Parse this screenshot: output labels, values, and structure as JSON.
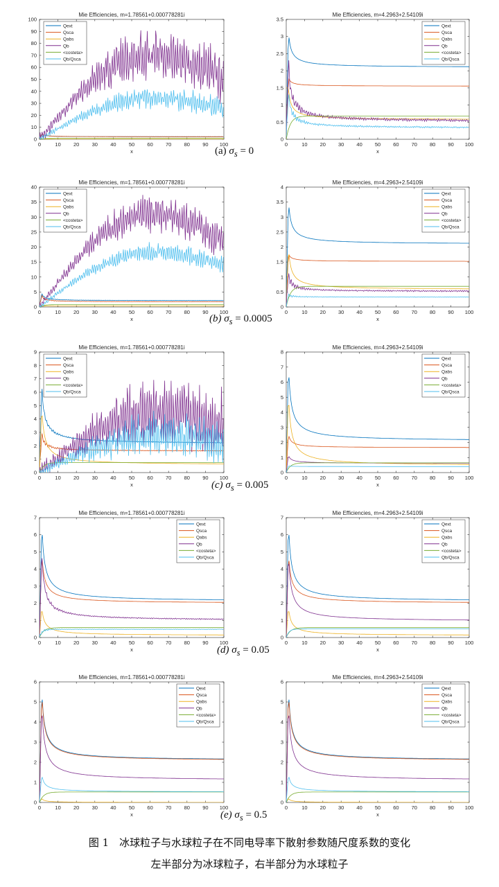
{
  "figure": {
    "caption_line1": "图 1　冰球粒子与水球粒子在不同电导率下散射参数随尺度系数的变化",
    "caption_line2": "左半部分为冰球粒子，右半部分为水球粒子",
    "legend_labels": [
      "Qext",
      "Qsca",
      "Qabs",
      "Qb",
      "<costeta>",
      "Qb/Qsca"
    ],
    "series_colors": {
      "Qext": "#0072BD",
      "Qsca": "#D95319",
      "Qabs": "#EDB120",
      "Qb": "#7E2F8E",
      "costeta": "#77AC30",
      "QbQsca": "#4DBEEE"
    },
    "rows": [
      {
        "label_prefix": "(a)",
        "sigma_symbol": "σ",
        "sigma_sub": "s",
        "sigma_value": "= 0"
      },
      {
        "label_prefix": "(b)",
        "sigma_symbol": "σ",
        "sigma_sub": "s",
        "sigma_value": "= 0.0005"
      },
      {
        "label_prefix": "(c)",
        "sigma_symbol": "σ",
        "sigma_sub": "s",
        "sigma_value": "= 0.005"
      },
      {
        "label_prefix": "(d)",
        "sigma_symbol": "σ",
        "sigma_sub": "s",
        "sigma_value": "= 0.05"
      },
      {
        "label_prefix": "(e)",
        "sigma_symbol": "σ",
        "sigma_sub": "s",
        "sigma_value": "= 0.5"
      }
    ]
  },
  "chart_data": [
    {
      "id": "a-ice",
      "type": "line",
      "title": "Mie Efficiencies, m=1.78561+0.000778281i",
      "xlabel": "x",
      "ylabel": "",
      "xlim": [
        0,
        100
      ],
      "ylim": [
        0,
        100
      ],
      "xticks": [
        0,
        10,
        20,
        30,
        40,
        50,
        60,
        70,
        80,
        90,
        100
      ],
      "yticks": [
        0,
        10,
        20,
        30,
        40,
        50,
        60,
        70,
        80,
        90,
        100
      ],
      "legend": "top-left",
      "series": [
        {
          "name": "Qext",
          "start": 0,
          "peak": 4.5,
          "final": 2.1,
          "osc": 0.3,
          "envelope": "decay"
        },
        {
          "name": "Qsca",
          "start": 0,
          "peak": 4.5,
          "final": 2.1,
          "osc": 0.3,
          "envelope": "decay"
        },
        {
          "name": "Qabs",
          "start": 0,
          "peak": 0.3,
          "final": 0.1,
          "osc": 0,
          "envelope": "decay"
        },
        {
          "name": "Qb",
          "start": 0,
          "peak": 93,
          "final": 50,
          "mid_peak_x": 60,
          "mid_peak": 70,
          "osc": 22,
          "envelope": "hump"
        },
        {
          "name": "<costeta>",
          "start": 0,
          "peak": 0.8,
          "final": 0.8,
          "osc": 0,
          "envelope": "rise"
        },
        {
          "name": "Qb/Qsca",
          "start": 0,
          "peak": 46,
          "final": 25,
          "mid_peak_x": 62,
          "mid_peak": 35,
          "osc": 9,
          "envelope": "hump"
        }
      ]
    },
    {
      "id": "a-water",
      "type": "line",
      "title": "Mie Efficiencies, m=4.2963+2.54109i",
      "xlabel": "x",
      "ylabel": "",
      "xlim": [
        0,
        100
      ],
      "ylim": [
        0,
        3.5
      ],
      "xticks": [
        0,
        10,
        20,
        30,
        40,
        50,
        60,
        70,
        80,
        90,
        100
      ],
      "yticks": [
        0,
        0.5,
        1,
        1.5,
        2,
        2.5,
        3,
        3.5
      ],
      "legend": "top-right",
      "series": [
        {
          "name": "Qext",
          "start": 0,
          "peak": 3.15,
          "final": 2.1,
          "osc": 0,
          "envelope": "decay"
        },
        {
          "name": "Qsca",
          "start": 0,
          "peak": 1.8,
          "final": 1.55,
          "osc": 0,
          "envelope": "decay"
        },
        {
          "name": "Qabs",
          "start": 1.5,
          "peak": 1.5,
          "final": 0.57,
          "osc": 0,
          "envelope": "decay"
        },
        {
          "name": "Qb",
          "start": 0,
          "peak": 2.3,
          "final": 0.52,
          "osc": 0.25,
          "envelope": "decay"
        },
        {
          "name": "<costeta>",
          "start": 0,
          "peak": 0.68,
          "final": 0.68,
          "osc": 0,
          "envelope": "rise"
        },
        {
          "name": "Qb/Qsca",
          "start": 0,
          "peak": 1.4,
          "final": 0.33,
          "osc": 0.15,
          "envelope": "decay"
        }
      ]
    },
    {
      "id": "b-ice",
      "type": "line",
      "title": "Mie Efficiencies, m=1.78561+0.000778281i",
      "xlabel": "x",
      "ylabel": "",
      "xlim": [
        0,
        100
      ],
      "ylim": [
        0,
        40
      ],
      "xticks": [
        0,
        10,
        20,
        30,
        40,
        50,
        60,
        70,
        80,
        90,
        100
      ],
      "yticks": [
        0,
        5,
        10,
        15,
        20,
        25,
        30,
        35,
        40
      ],
      "legend": "top-left",
      "series": [
        {
          "name": "Qext",
          "start": 0,
          "peak": 4.5,
          "final": 2.1,
          "osc": 0.3,
          "envelope": "decay"
        },
        {
          "name": "Qsca",
          "start": 0,
          "peak": 3.8,
          "final": 1.7,
          "osc": 0.3,
          "envelope": "decay"
        },
        {
          "name": "Qabs",
          "start": 0,
          "peak": 0.5,
          "final": 0.35,
          "osc": 0,
          "envelope": "flat"
        },
        {
          "name": "Qb",
          "start": 0,
          "peak": 38.5,
          "final": 22,
          "mid_peak_x": 60,
          "mid_peak": 31,
          "osc": 6,
          "envelope": "hump"
        },
        {
          "name": "<costeta>",
          "start": 0,
          "peak": 0.8,
          "final": 0.8,
          "osc": 0,
          "envelope": "rise"
        },
        {
          "name": "Qb/Qsca",
          "start": 0,
          "peak": 23,
          "final": 14,
          "mid_peak_x": 62,
          "mid_peak": 18.5,
          "osc": 3,
          "envelope": "hump"
        }
      ]
    },
    {
      "id": "b-water",
      "type": "line",
      "title": "Mie Efficiencies, m=4.2963+2.54109i",
      "xlabel": "x",
      "ylabel": "",
      "xlim": [
        0,
        100
      ],
      "ylim": [
        0,
        4
      ],
      "xticks": [
        0,
        10,
        20,
        30,
        40,
        50,
        60,
        70,
        80,
        90,
        100
      ],
      "yticks": [
        0,
        0.5,
        1,
        1.5,
        2,
        2.5,
        3,
        3.5,
        4
      ],
      "legend": "top-right",
      "series": [
        {
          "name": "Qext",
          "start": 0,
          "peak": 3.57,
          "final": 2.1,
          "osc": 0,
          "envelope": "decay"
        },
        {
          "name": "Qsca",
          "start": 0,
          "peak": 1.78,
          "final": 1.52,
          "osc": 0,
          "envelope": "decay"
        },
        {
          "name": "Qabs",
          "start": 0,
          "peak": 2.0,
          "final": 0.58,
          "osc": 0,
          "envelope": "decay"
        },
        {
          "name": "Qb",
          "start": 0,
          "peak": 1.1,
          "final": 0.52,
          "osc": 0.15,
          "envelope": "decay"
        },
        {
          "name": "<costeta>",
          "start": 0,
          "peak": 0.69,
          "final": 0.69,
          "osc": 0,
          "envelope": "rise"
        },
        {
          "name": "Qb/Qsca",
          "start": 0,
          "peak": 0.4,
          "final": 0.33,
          "osc": 0.05,
          "envelope": "decay"
        }
      ]
    },
    {
      "id": "c-ice",
      "type": "line",
      "title": "Mie Efficiencies, m=1.78561+0.000778281i",
      "xlabel": "x",
      "ylabel": "",
      "xlim": [
        0,
        100
      ],
      "ylim": [
        0,
        9
      ],
      "xticks": [
        0,
        10,
        20,
        30,
        40,
        50,
        60,
        70,
        80,
        90,
        100
      ],
      "yticks": [
        0,
        1,
        2,
        3,
        4,
        5,
        6,
        7,
        8,
        9
      ],
      "legend": "top-left",
      "series": [
        {
          "name": "Qext",
          "start": 0,
          "peak": 6.6,
          "final": 2.15,
          "osc": 0.2,
          "envelope": "decay"
        },
        {
          "name": "Qsca",
          "start": 0,
          "peak": 2.95,
          "final": 1.6,
          "osc": 0.2,
          "envelope": "decay"
        },
        {
          "name": "Qabs",
          "start": 0,
          "peak": 5.0,
          "final": 0.57,
          "osc": 0,
          "envelope": "decay"
        },
        {
          "name": "Qb",
          "start": 0,
          "peak": 8.1,
          "final": 3.5,
          "mid_peak_x": 65,
          "mid_peak": 4.5,
          "osc": 2.5,
          "envelope": "hump"
        },
        {
          "name": "<costeta>",
          "start": 0,
          "peak": 0.75,
          "final": 0.75,
          "osc": 0,
          "envelope": "rise"
        },
        {
          "name": "Qb/Qsca",
          "start": 0,
          "peak": 5.0,
          "final": 2.2,
          "mid_peak_x": 65,
          "mid_peak": 2.8,
          "osc": 1.6,
          "envelope": "hump"
        }
      ]
    },
    {
      "id": "c-water",
      "type": "line",
      "title": "Mie Efficiencies, m=4.2963+2.54109i",
      "xlabel": "x",
      "ylabel": "",
      "xlim": [
        0,
        100
      ],
      "ylim": [
        0,
        8
      ],
      "xticks": [
        0,
        10,
        20,
        30,
        40,
        50,
        60,
        70,
        80,
        90,
        100
      ],
      "yticks": [
        0,
        1,
        2,
        3,
        4,
        5,
        6,
        7,
        8
      ],
      "legend": "top-right",
      "series": [
        {
          "name": "Qext",
          "start": 0,
          "peak": 7.2,
          "final": 2.1,
          "osc": 0,
          "envelope": "decay"
        },
        {
          "name": "Qsca",
          "start": 0,
          "peak": 2.55,
          "final": 1.65,
          "osc": 0,
          "envelope": "decay"
        },
        {
          "name": "Qabs",
          "start": 0,
          "peak": 5.3,
          "final": 0.45,
          "osc": 0,
          "envelope": "decay"
        },
        {
          "name": "Qb",
          "start": 0,
          "peak": 1.15,
          "final": 0.62,
          "osc": 0,
          "envelope": "decay"
        },
        {
          "name": "<costeta>",
          "start": 0,
          "peak": 0.65,
          "final": 0.65,
          "osc": 0,
          "envelope": "rise"
        },
        {
          "name": "Qb/Qsca",
          "start": 0,
          "peak": 0.45,
          "final": 0.4,
          "osc": 0,
          "envelope": "decay"
        }
      ]
    },
    {
      "id": "d-ice",
      "type": "line",
      "title": "Mie Efficiencies, m=1.78561+0.000778281i",
      "xlabel": "x",
      "ylabel": "",
      "xlim": [
        0,
        100
      ],
      "ylim": [
        0,
        7
      ],
      "xticks": [
        0,
        10,
        20,
        30,
        40,
        50,
        60,
        70,
        80,
        90,
        100
      ],
      "yticks": [
        0,
        1,
        2,
        3,
        4,
        5,
        6,
        7
      ],
      "legend": "top-right",
      "series": [
        {
          "name": "Qext",
          "start": 0,
          "peak": 6.8,
          "final": 2.12,
          "osc": 0,
          "envelope": "decay"
        },
        {
          "name": "Qsca",
          "start": 0,
          "peak": 5.0,
          "final": 2.0,
          "osc": 0,
          "envelope": "decay"
        },
        {
          "name": "Qabs",
          "start": 0,
          "peak": 1.8,
          "final": 0.12,
          "osc": 0,
          "envelope": "decay"
        },
        {
          "name": "Qb",
          "start": 0,
          "peak": 5.0,
          "final": 1.0,
          "osc": 0.2,
          "envelope": "decay"
        },
        {
          "name": "<costeta>",
          "start": 0,
          "peak": 0.58,
          "final": 0.58,
          "osc": 0,
          "envelope": "rise"
        },
        {
          "name": "Qb/Qsca",
          "start": 0,
          "peak": 0.5,
          "final": 0.48,
          "osc": 0.08,
          "envelope": "flat"
        }
      ]
    },
    {
      "id": "d-water",
      "type": "line",
      "title": "Mie Efficiencies, m=4.2963+2.54109i",
      "xlabel": "x",
      "ylabel": "",
      "xlim": [
        0,
        100
      ],
      "ylim": [
        0,
        7
      ],
      "xticks": [
        0,
        10,
        20,
        30,
        40,
        50,
        60,
        70,
        80,
        90,
        100
      ],
      "yticks": [
        0,
        1,
        2,
        3,
        4,
        5,
        6,
        7
      ],
      "legend": "top-right",
      "series": [
        {
          "name": "Qext",
          "start": 0,
          "peak": 6.8,
          "final": 2.12,
          "osc": 0,
          "envelope": "decay"
        },
        {
          "name": "Qsca",
          "start": 0,
          "peak": 5.0,
          "final": 2.0,
          "osc": 0,
          "envelope": "decay"
        },
        {
          "name": "Qabs",
          "start": 0,
          "peak": 1.8,
          "final": 0.12,
          "osc": 0,
          "envelope": "decay"
        },
        {
          "name": "Qb",
          "start": 0,
          "peak": 5.0,
          "final": 0.95,
          "osc": 0,
          "envelope": "decay"
        },
        {
          "name": "<costeta>",
          "start": 0,
          "peak": 0.58,
          "final": 0.58,
          "osc": 0,
          "envelope": "rise"
        },
        {
          "name": "Qb/Qsca",
          "start": 0,
          "peak": 0.5,
          "final": 0.5,
          "osc": 0,
          "envelope": "flat"
        }
      ]
    },
    {
      "id": "e-ice",
      "type": "line",
      "title": "Mie Efficiencies, m=1.78561+0.000778281i",
      "xlabel": "x",
      "ylabel": "",
      "xlim": [
        0,
        100
      ],
      "ylim": [
        0,
        6
      ],
      "xticks": [
        0,
        10,
        20,
        30,
        40,
        50,
        60,
        70,
        80,
        90,
        100
      ],
      "yticks": [
        0,
        1,
        2,
        3,
        4,
        5,
        6
      ],
      "legend": "top-right",
      "series": [
        {
          "name": "Qext",
          "start": 0,
          "peak": 5.75,
          "final": 2.1,
          "osc": 0,
          "envelope": "decay"
        },
        {
          "name": "Qsca",
          "start": 0,
          "peak": 5.6,
          "final": 2.08,
          "osc": 0,
          "envelope": "decay"
        },
        {
          "name": "Qabs",
          "start": 0,
          "peak": 0.2,
          "final": 0.0,
          "osc": 0,
          "envelope": "decay"
        },
        {
          "name": "Qb",
          "start": 0,
          "peak": 5.0,
          "final": 1.1,
          "osc": 0,
          "envelope": "decay"
        },
        {
          "name": "<costeta>",
          "start": 0,
          "peak": 0.52,
          "final": 0.52,
          "osc": 0,
          "envelope": "rise"
        },
        {
          "name": "Qb/Qsca",
          "start": 0,
          "peak": 1.4,
          "final": 0.52,
          "osc": 0,
          "envelope": "decay"
        }
      ]
    },
    {
      "id": "e-water",
      "type": "line",
      "title": "Mie Efficiencies, m=4.2963+2.54109i",
      "xlabel": "x",
      "ylabel": "",
      "xlim": [
        0,
        100
      ],
      "ylim": [
        0,
        6
      ],
      "xticks": [
        0,
        10,
        20,
        30,
        40,
        50,
        60,
        70,
        80,
        90,
        100
      ],
      "yticks": [
        0,
        1,
        2,
        3,
        4,
        5,
        6
      ],
      "legend": "top-right",
      "series": [
        {
          "name": "Qext",
          "start": 0,
          "peak": 5.75,
          "final": 2.1,
          "osc": 0,
          "envelope": "decay"
        },
        {
          "name": "Qsca",
          "start": 0,
          "peak": 5.6,
          "final": 2.08,
          "osc": 0,
          "envelope": "decay"
        },
        {
          "name": "Qabs",
          "start": 0,
          "peak": 0.2,
          "final": 0.0,
          "osc": 0,
          "envelope": "decay"
        },
        {
          "name": "Qb",
          "start": 0,
          "peak": 5.0,
          "final": 1.1,
          "osc": 0,
          "envelope": "decay"
        },
        {
          "name": "<costeta>",
          "start": 0,
          "peak": 0.52,
          "final": 0.52,
          "osc": 0,
          "envelope": "rise"
        },
        {
          "name": "Qb/Qsca",
          "start": 0,
          "peak": 1.4,
          "final": 0.52,
          "osc": 0,
          "envelope": "decay"
        }
      ]
    }
  ]
}
